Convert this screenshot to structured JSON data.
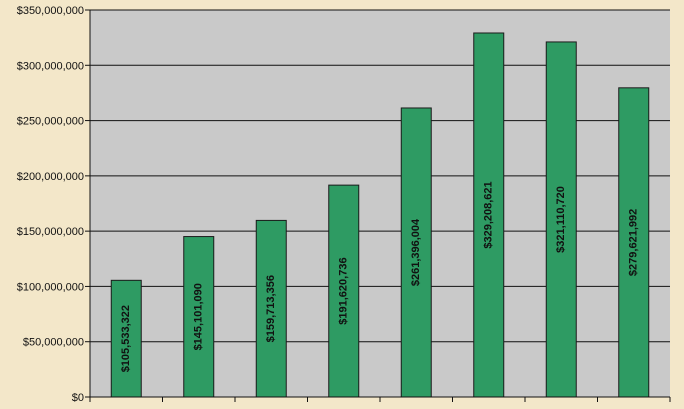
{
  "chart_data": {
    "type": "bar",
    "categories": [
      "",
      "",
      "",
      "",
      "",
      "",
      "",
      ""
    ],
    "values": [
      105533322,
      145101090,
      159713356,
      191620736,
      261396004,
      329208621,
      321110720,
      279621992
    ],
    "data_labels": [
      "$105,533,322",
      "$145,101,090",
      "$159,713,356",
      "$191,620,736",
      "$261,396,004",
      "$329,208,621",
      "$321,110,720",
      "$279,621,992"
    ],
    "y_ticks": [
      0,
      50000000,
      100000000,
      150000000,
      200000000,
      250000000,
      300000000,
      350000000
    ],
    "y_tick_labels": [
      "$0",
      "$50,000,000",
      "$100,000,000",
      "$150,000,000",
      "$200,000,000",
      "$250,000,000",
      "$300,000,000",
      "$350,000,000"
    ],
    "ylim": [
      0,
      350000000
    ],
    "title": "",
    "xlabel": "",
    "ylabel": "",
    "grid": true,
    "legend": "none",
    "colors": {
      "bar": "#2e9b63",
      "bar_edge": "#1a1a1a",
      "plot_bg": "#c9c9c9",
      "page_bg": "#f3e7c9",
      "grid": "#111111"
    }
  }
}
